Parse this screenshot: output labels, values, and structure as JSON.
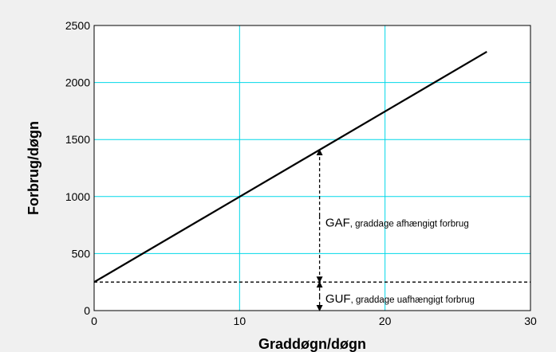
{
  "chart_data": {
    "type": "line",
    "xlabel": "Graddøgn/døgn",
    "ylabel": "Forbrug/døgn",
    "xlim": [
      0,
      30
    ],
    "ylim": [
      0,
      2500
    ],
    "x_ticks": [
      "0",
      "10",
      "20",
      "30"
    ],
    "y_ticks": [
      "0",
      "500",
      "1000",
      "1500",
      "2000",
      "2500"
    ],
    "grid": true,
    "series": [
      {
        "x": [
          0,
          27
        ],
        "y": [
          250,
          2270
        ]
      }
    ],
    "baseline": {
      "y": 250,
      "x": [
        0,
        30
      ]
    },
    "arrows": [
      {
        "x": 15.5,
        "y_from": 250,
        "y_to": 1410
      },
      {
        "x": 15.5,
        "y_from": 0,
        "y_to": 250
      }
    ],
    "annotations": [
      {
        "main": "GAF",
        "sub": ", graddage afhængigt forbrug",
        "x": 15.9,
        "y": 770
      },
      {
        "main": "GUF",
        "sub": ", graddage uafhængigt forbrug",
        "x": 15.9,
        "y": 105
      }
    ],
    "colors": {
      "background": "#f0f0f0",
      "plot_area": "#ffffff",
      "grid": "#00d8e8",
      "line": "#000000"
    }
  }
}
